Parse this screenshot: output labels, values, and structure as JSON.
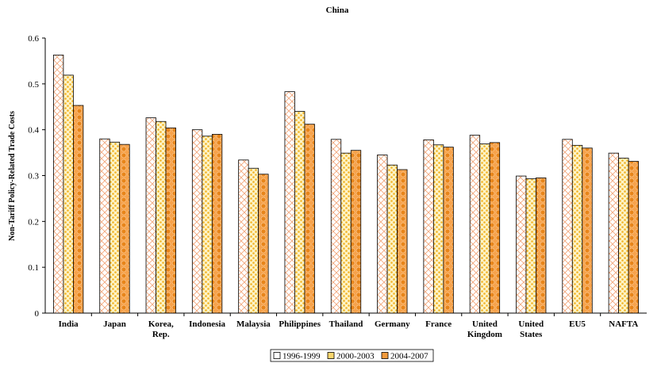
{
  "chart_data": {
    "type": "bar",
    "title": "China",
    "ylabel": "Non-Tariff Policy-Related Trade Costs",
    "xlabel": "",
    "ylim": [
      0,
      0.6
    ],
    "yticks": [
      "0",
      "0.1",
      "0.2",
      "0.3",
      "0.4",
      "0.5",
      "0.6"
    ],
    "categories": [
      [
        "India"
      ],
      [
        "Japan"
      ],
      [
        "Korea,",
        "Rep."
      ],
      [
        "Indonesia"
      ],
      [
        "Malaysia"
      ],
      [
        "Philippines"
      ],
      [
        "Thailand"
      ],
      [
        "Germany"
      ],
      [
        "France"
      ],
      [
        "United",
        "Kingdom"
      ],
      [
        "United",
        "States"
      ],
      [
        "EU5"
      ],
      [
        "NAFTA"
      ]
    ],
    "series": [
      {
        "name": "1996-1999",
        "values": [
          0.563,
          0.38,
          0.426,
          0.4,
          0.334,
          0.483,
          0.379,
          0.345,
          0.378,
          0.388,
          0.299,
          0.379,
          0.349
        ]
      },
      {
        "name": "2000-2003",
        "values": [
          0.519,
          0.373,
          0.418,
          0.386,
          0.316,
          0.44,
          0.349,
          0.323,
          0.367,
          0.369,
          0.293,
          0.366,
          0.338
        ]
      },
      {
        "name": "2004-2007",
        "values": [
          0.453,
          0.368,
          0.404,
          0.39,
          0.303,
          0.412,
          0.355,
          0.313,
          0.362,
          0.372,
          0.295,
          0.36,
          0.331
        ]
      }
    ],
    "grid": false,
    "legend_position": "bottom-center"
  }
}
